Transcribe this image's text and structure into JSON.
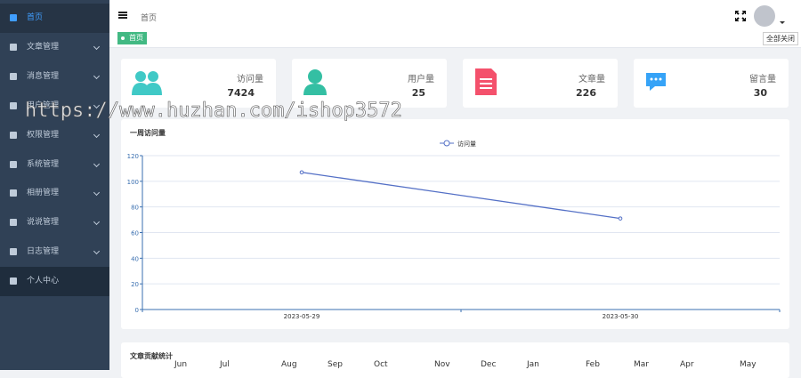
{
  "sidebar": {
    "items": [
      {
        "label": "首页",
        "active": true,
        "submenu": false
      },
      {
        "label": "文章管理",
        "submenu": true
      },
      {
        "label": "消息管理",
        "submenu": true
      },
      {
        "label": "用户管理",
        "submenu": true
      },
      {
        "label": "权限管理",
        "submenu": true
      },
      {
        "label": "系统管理",
        "submenu": true
      },
      {
        "label": "相册管理",
        "submenu": true
      },
      {
        "label": "说说管理",
        "submenu": true
      },
      {
        "label": "日志管理",
        "submenu": true
      },
      {
        "label": "个人中心",
        "submenu": false
      }
    ]
  },
  "header": {
    "breadcrumb": "首页"
  },
  "tabs": {
    "items": [
      "首页"
    ],
    "close_all": "全部关闭"
  },
  "stats": [
    {
      "label": "访问量",
      "value": 7424
    },
    {
      "label": "用户量",
      "value": 25
    },
    {
      "label": "文章量",
      "value": 226
    },
    {
      "label": "留言量",
      "value": 30
    }
  ],
  "chart_data": {
    "type": "line",
    "title": "一周访问量",
    "categories": [
      "2023-05-29",
      "2023-05-30"
    ],
    "series": [
      {
        "name": "访问量",
        "color": "#5470c6",
        "values": [
          107,
          71
        ]
      }
    ],
    "ylim": [
      0,
      120
    ],
    "yticks": [
      0,
      20,
      40,
      60,
      80,
      100,
      120
    ],
    "grid": true
  },
  "contribution": {
    "title": "文章贡献统计",
    "months": [
      "Jun",
      "Jul",
      "Aug",
      "Sep",
      "Oct",
      "Nov",
      "Dec",
      "Jan",
      "Feb",
      "Mar",
      "Apr",
      "May"
    ]
  },
  "watermark": "https://www.huzhan.com/ishop3572"
}
